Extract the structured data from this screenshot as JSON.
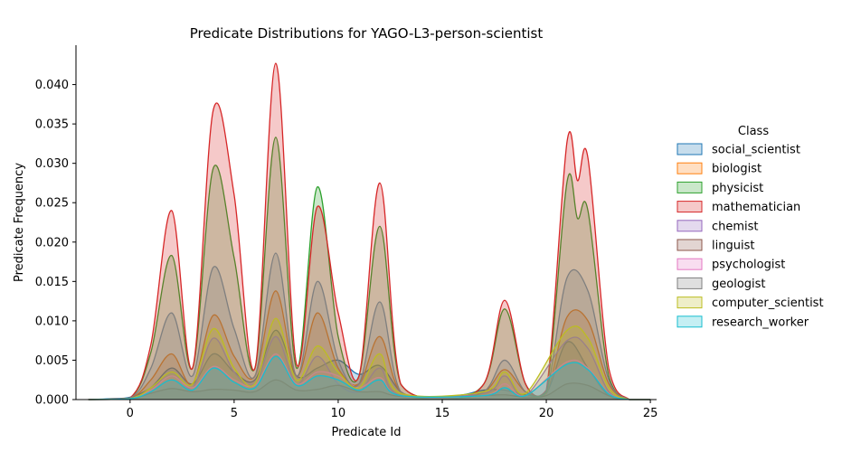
{
  "chart_data": {
    "type": "area",
    "title": "Predicate Distributions for YAGO-L3-person-scientist",
    "xlabel": "Predicate Id",
    "ylabel": "Predicate Frequency",
    "xlim": [
      -2.6,
      25.3
    ],
    "ylim": [
      0,
      0.045
    ],
    "xticks": [
      0,
      5,
      10,
      15,
      20,
      25
    ],
    "yticks": [
      0.0,
      0.005,
      0.01,
      0.015,
      0.02,
      0.025,
      0.03,
      0.035,
      0.04
    ],
    "ytick_labels": [
      "0.000",
      "0.005",
      "0.010",
      "0.015",
      "0.020",
      "0.025",
      "0.030",
      "0.035",
      "0.040"
    ],
    "legend_title": "Class",
    "legend_position": "right",
    "grid": false,
    "series": [
      {
        "name": "social_scientist",
        "color": "#1f77b4",
        "points": [
          [
            -2,
            0
          ],
          [
            -1,
            0.0001
          ],
          [
            0,
            0.0003
          ],
          [
            1,
            0.0015
          ],
          [
            2,
            0.004
          ],
          [
            3,
            0.002
          ],
          [
            4,
            0.0058
          ],
          [
            5,
            0.0035
          ],
          [
            6,
            0.0025
          ],
          [
            7,
            0.0088
          ],
          [
            8,
            0.003
          ],
          [
            9,
            0.004
          ],
          [
            10,
            0.005
          ],
          [
            11,
            0.0032
          ],
          [
            12,
            0.0043
          ],
          [
            13,
            0.001
          ],
          [
            14,
            0.0002
          ],
          [
            15,
            0.0003
          ],
          [
            16,
            0.0006
          ],
          [
            17,
            0.0012
          ],
          [
            18,
            0.0012
          ],
          [
            19,
            0.0006
          ],
          [
            20,
            0.0008
          ],
          [
            21,
            0.0073
          ],
          [
            22,
            0.004
          ],
          [
            23,
            0.0005
          ],
          [
            24,
            0
          ],
          [
            25,
            0
          ]
        ]
      },
      {
        "name": "biologist",
        "color": "#ff7f0e",
        "points": [
          [
            -2,
            0
          ],
          [
            0,
            0.0002
          ],
          [
            1,
            0.0025
          ],
          [
            2,
            0.0058
          ],
          [
            3,
            0.002
          ],
          [
            4,
            0.0107
          ],
          [
            5,
            0.0055
          ],
          [
            6,
            0.003
          ],
          [
            7,
            0.0138
          ],
          [
            8,
            0.003
          ],
          [
            9,
            0.011
          ],
          [
            10,
            0.004
          ],
          [
            11,
            0.002
          ],
          [
            12,
            0.008
          ],
          [
            13,
            0.001
          ],
          [
            15,
            0.0002
          ],
          [
            17,
            0.001
          ],
          [
            18,
            0.0038
          ],
          [
            19,
            0.001
          ],
          [
            20,
            0.0008
          ],
          [
            21,
            0.0105
          ],
          [
            22,
            0.01
          ],
          [
            23,
            0.002
          ],
          [
            24,
            0
          ],
          [
            25,
            0
          ]
        ]
      },
      {
        "name": "physicist",
        "color": "#2ca02c",
        "points": [
          [
            -2,
            0
          ],
          [
            0,
            0.0002
          ],
          [
            1,
            0.006
          ],
          [
            2,
            0.0183
          ],
          [
            3,
            0.004
          ],
          [
            4,
            0.0294
          ],
          [
            5,
            0.018
          ],
          [
            6,
            0.004
          ],
          [
            7,
            0.0333
          ],
          [
            8,
            0.004
          ],
          [
            9,
            0.027
          ],
          [
            10,
            0.008
          ],
          [
            11,
            0.003
          ],
          [
            12,
            0.022
          ],
          [
            13,
            0.002
          ],
          [
            15,
            0.0002
          ],
          [
            17,
            0.002
          ],
          [
            18,
            0.0115
          ],
          [
            19,
            0.002
          ],
          [
            20,
            0.001
          ],
          [
            21,
            0.0277
          ],
          [
            21.5,
            0.023
          ],
          [
            22,
            0.024
          ],
          [
            23,
            0.003
          ],
          [
            24,
            0
          ],
          [
            25,
            0
          ]
        ]
      },
      {
        "name": "mathematician",
        "color": "#d62728",
        "points": [
          [
            -2,
            0
          ],
          [
            0,
            0.0002
          ],
          [
            1,
            0.007
          ],
          [
            2,
            0.024
          ],
          [
            3,
            0.004
          ],
          [
            4,
            0.0368
          ],
          [
            5,
            0.026
          ],
          [
            6,
            0.004
          ],
          [
            7,
            0.0427
          ],
          [
            8,
            0.0045
          ],
          [
            9,
            0.0245
          ],
          [
            10,
            0.011
          ],
          [
            11,
            0.003
          ],
          [
            12,
            0.0275
          ],
          [
            13,
            0.002
          ],
          [
            15,
            0.0002
          ],
          [
            17,
            0.002
          ],
          [
            18,
            0.0126
          ],
          [
            19,
            0.002
          ],
          [
            20,
            0.0012
          ],
          [
            21,
            0.0328
          ],
          [
            21.5,
            0.0278
          ],
          [
            22,
            0.0307
          ],
          [
            23,
            0.004
          ],
          [
            24,
            0
          ],
          [
            25,
            0
          ]
        ]
      },
      {
        "name": "chemist",
        "color": "#9467bd",
        "points": [
          [
            -2,
            0
          ],
          [
            0,
            0.0001
          ],
          [
            1,
            0.0012
          ],
          [
            2,
            0.0035
          ],
          [
            3,
            0.0015
          ],
          [
            4,
            0.0078
          ],
          [
            5,
            0.0035
          ],
          [
            6,
            0.002
          ],
          [
            7,
            0.008
          ],
          [
            8,
            0.002
          ],
          [
            9,
            0.0055
          ],
          [
            10,
            0.002
          ],
          [
            11,
            0.001
          ],
          [
            12,
            0.004
          ],
          [
            13,
            0.0005
          ],
          [
            17,
            0.0008
          ],
          [
            18,
            0.003
          ],
          [
            19,
            0.0005
          ],
          [
            21,
            0.0075
          ],
          [
            22,
            0.0065
          ],
          [
            23,
            0.001
          ],
          [
            24,
            0
          ],
          [
            25,
            0
          ]
        ]
      },
      {
        "name": "linguist",
        "color": "#8c564b",
        "points": [
          [
            -2,
            0
          ],
          [
            0,
            0.0001
          ],
          [
            1,
            0.0008
          ],
          [
            2,
            0.0014
          ],
          [
            3,
            0.001
          ],
          [
            4,
            0.0013
          ],
          [
            5,
            0.0012
          ],
          [
            6,
            0.001
          ],
          [
            7,
            0.0025
          ],
          [
            8,
            0.0012
          ],
          [
            9,
            0.0013
          ],
          [
            10,
            0.0018
          ],
          [
            11,
            0.001
          ],
          [
            12,
            0.001
          ],
          [
            13,
            0.0004
          ],
          [
            16,
            0.0003
          ],
          [
            17,
            0.0005
          ],
          [
            18,
            0.0006
          ],
          [
            19,
            0.0003
          ],
          [
            20,
            0.0005
          ],
          [
            21,
            0.002
          ],
          [
            22,
            0.0018
          ],
          [
            23,
            0.0005
          ],
          [
            24,
            0
          ],
          [
            25,
            0
          ]
        ]
      },
      {
        "name": "psychologist",
        "color": "#e377c2",
        "points": [
          [
            -2,
            0
          ],
          [
            0,
            0.0001
          ],
          [
            1,
            0.0012
          ],
          [
            2,
            0.003
          ],
          [
            3,
            0.0015
          ],
          [
            4,
            0.0042
          ],
          [
            5,
            0.0025
          ],
          [
            6,
            0.0018
          ],
          [
            7,
            0.0058
          ],
          [
            8,
            0.002
          ],
          [
            9,
            0.0035
          ],
          [
            10,
            0.003
          ],
          [
            11,
            0.0015
          ],
          [
            12,
            0.0028
          ],
          [
            13,
            0.0005
          ],
          [
            17,
            0.0005
          ],
          [
            18,
            0.002
          ],
          [
            19,
            0.0005
          ],
          [
            21,
            0.0048
          ],
          [
            22,
            0.004
          ],
          [
            23,
            0.0008
          ],
          [
            24,
            0
          ],
          [
            25,
            0
          ]
        ]
      },
      {
        "name": "geologist",
        "color": "#7f7f7f",
        "points": [
          [
            -2,
            0
          ],
          [
            0,
            0.0002
          ],
          [
            1,
            0.004
          ],
          [
            2,
            0.011
          ],
          [
            3,
            0.003
          ],
          [
            4,
            0.0168
          ],
          [
            5,
            0.009
          ],
          [
            6,
            0.003
          ],
          [
            7,
            0.0186
          ],
          [
            8,
            0.003
          ],
          [
            9,
            0.015
          ],
          [
            10,
            0.005
          ],
          [
            11,
            0.002
          ],
          [
            12,
            0.0124
          ],
          [
            13,
            0.001
          ],
          [
            15,
            0.0001
          ],
          [
            17,
            0.001
          ],
          [
            18,
            0.005
          ],
          [
            19,
            0.001
          ],
          [
            20,
            0.001
          ],
          [
            21,
            0.0155
          ],
          [
            22,
            0.0138
          ],
          [
            23,
            0.0025
          ],
          [
            24,
            0
          ],
          [
            25,
            0
          ]
        ]
      },
      {
        "name": "computer_scientist",
        "color": "#bcbd22",
        "points": [
          [
            -2,
            0
          ],
          [
            0,
            0.0001
          ],
          [
            1,
            0.0015
          ],
          [
            2,
            0.0035
          ],
          [
            3,
            0.002
          ],
          [
            4,
            0.009
          ],
          [
            5,
            0.004
          ],
          [
            6,
            0.002
          ],
          [
            7,
            0.0103
          ],
          [
            8,
            0.0025
          ],
          [
            9,
            0.0068
          ],
          [
            10,
            0.0035
          ],
          [
            11,
            0.0015
          ],
          [
            12,
            0.0058
          ],
          [
            13,
            0.0008
          ],
          [
            17,
            0.001
          ],
          [
            18,
            0.0035
          ],
          [
            19,
            0.0008
          ],
          [
            21,
            0.0088
          ],
          [
            22,
            0.0078
          ],
          [
            23,
            0.0015
          ],
          [
            24,
            0
          ],
          [
            25,
            0
          ]
        ]
      },
      {
        "name": "research_worker",
        "color": "#17becf",
        "points": [
          [
            -2,
            0
          ],
          [
            0,
            0.0001
          ],
          [
            1,
            0.001
          ],
          [
            2,
            0.0025
          ],
          [
            3,
            0.0012
          ],
          [
            4,
            0.004
          ],
          [
            5,
            0.0022
          ],
          [
            6,
            0.0015
          ],
          [
            7,
            0.0055
          ],
          [
            8,
            0.0018
          ],
          [
            9,
            0.003
          ],
          [
            10,
            0.0025
          ],
          [
            11,
            0.0012
          ],
          [
            12,
            0.0025
          ],
          [
            13,
            0.0005
          ],
          [
            17,
            0.0005
          ],
          [
            18,
            0.0015
          ],
          [
            19,
            0.0005
          ],
          [
            21,
            0.0045
          ],
          [
            22,
            0.0038
          ],
          [
            23,
            0.0007
          ],
          [
            24,
            0
          ],
          [
            25,
            0
          ]
        ]
      }
    ]
  }
}
